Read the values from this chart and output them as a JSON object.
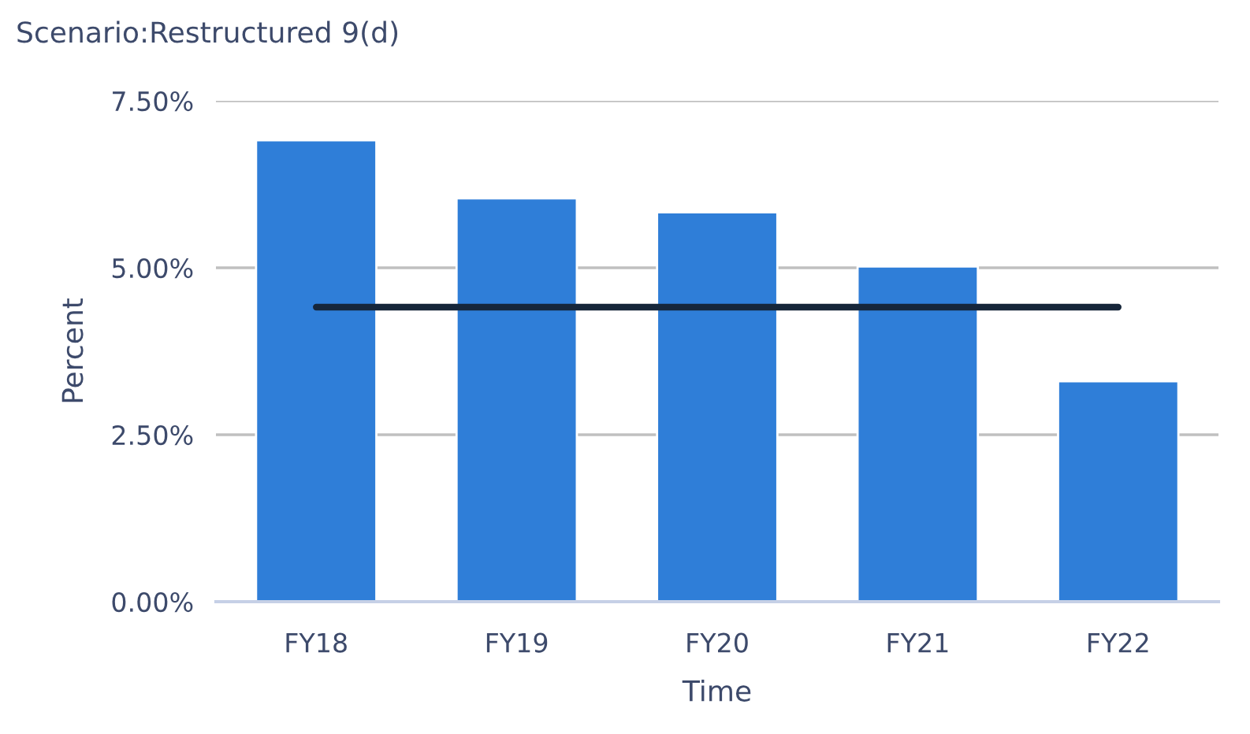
{
  "chart_data": {
    "type": "bar",
    "title": "Scenario:Restructured 9(d)",
    "xlabel": "Time",
    "ylabel": "Percent",
    "categories": [
      "FY18",
      "FY19",
      "FY20",
      "FY21",
      "FY22"
    ],
    "series": [
      {
        "color": "#2f7ed8",
        "values": [
          6.91,
          6.04,
          5.83,
          5.02,
          3.3
        ]
      },
      {
        "type": "line",
        "color": "#16263a",
        "values": [
          4.41,
          4.41,
          4.41,
          4.41,
          4.41
        ]
      }
    ],
    "ylim": [
      0,
      7.5
    ],
    "yticks": [
      {
        "value": 0,
        "label": "0.00%"
      },
      {
        "value": 2.5,
        "label": "2.50%"
      },
      {
        "value": 5,
        "label": "5.00%"
      },
      {
        "value": 7.5,
        "label": "7.50%"
      }
    ],
    "grid": "y",
    "legend": false,
    "marker": "none",
    "line_style": "solid"
  }
}
